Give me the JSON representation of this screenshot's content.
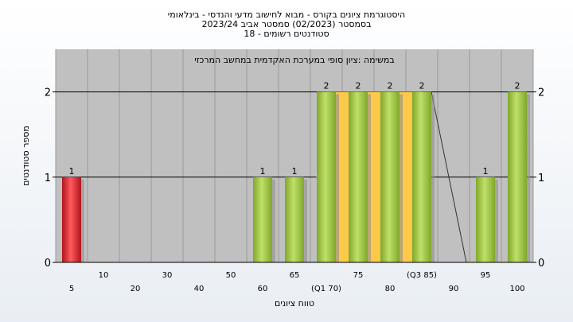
{
  "chart_data": {
    "type": "bar",
    "title_lines": [
      "היסטוגרמת ציונים בקורס - מבוא לחישוב מדעי והנדסי - בינלאומי",
      "בסמסטר  (02/2023)  סמסטר אביב 2023/24",
      "סטודנטים רשומים - 18"
    ],
    "subtitle": "במשימה :ציון סופי במערכת האקדמית במחשב המרכזי",
    "xlabel": "טווח ציונים",
    "ylabel": "מספר סטודנטים",
    "ylim": [
      0,
      2.5
    ],
    "yticks": [
      0,
      1,
      2
    ],
    "grid": true,
    "categories": [
      "5",
      "10",
      "20",
      "30",
      "40",
      "50",
      "60",
      "65",
      "70",
      "75",
      "80",
      "85",
      "90",
      "95",
      "100"
    ],
    "category_labels": [
      "5",
      "10",
      "20",
      "30",
      "40",
      "50",
      "60",
      "65",
      "(Q1 70)",
      "75",
      "80",
      "(Q3 85)",
      "90",
      "95",
      "100"
    ],
    "values": [
      1,
      0,
      0,
      0,
      0,
      0,
      1,
      1,
      2,
      2,
      2,
      2,
      0,
      1,
      2
    ],
    "value_labels": [
      "1",
      "",
      "",
      "",
      "",
      "",
      "1",
      "1",
      "2",
      "2",
      "2",
      "2",
      "",
      "1",
      "2"
    ],
    "quartile_band": {
      "from": "70",
      "to": "85",
      "color": "#fdc94a"
    },
    "colors": {
      "fail": "#e0262b",
      "pass": "#9ccc3c",
      "plot_bg": "#c0c0c0",
      "band": "#fdc94a"
    }
  }
}
